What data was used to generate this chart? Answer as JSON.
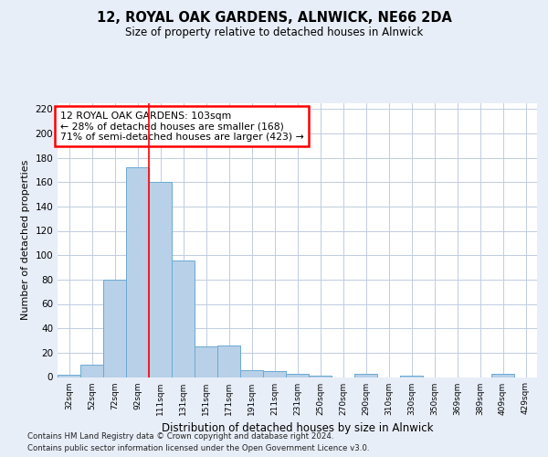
{
  "title": "12, ROYAL OAK GARDENS, ALNWICK, NE66 2DA",
  "subtitle": "Size of property relative to detached houses in Alnwick",
  "xlabel": "Distribution of detached houses by size in Alnwick",
  "ylabel": "Number of detached properties",
  "categories": [
    "32sqm",
    "52sqm",
    "72sqm",
    "92sqm",
    "111sqm",
    "131sqm",
    "151sqm",
    "171sqm",
    "191sqm",
    "211sqm",
    "231sqm",
    "250sqm",
    "270sqm",
    "290sqm",
    "310sqm",
    "330sqm",
    "350sqm",
    "369sqm",
    "389sqm",
    "409sqm",
    "429sqm"
  ],
  "values": [
    2,
    10,
    80,
    172,
    160,
    96,
    25,
    26,
    6,
    5,
    3,
    1,
    0,
    3,
    0,
    1,
    0,
    0,
    0,
    3,
    0
  ],
  "bar_color": "#b8d0e8",
  "bar_edge_color": "#6aaad4",
  "annotation_text": "12 ROYAL OAK GARDENS: 103sqm\n← 28% of detached houses are smaller (168)\n71% of semi-detached houses are larger (423) →",
  "ylim": [
    0,
    225
  ],
  "yticks": [
    0,
    20,
    40,
    60,
    80,
    100,
    120,
    140,
    160,
    180,
    200,
    220
  ],
  "footer_line1": "Contains HM Land Registry data © Crown copyright and database right 2024.",
  "footer_line2": "Contains public sector information licensed under the Open Government Licence v3.0.",
  "background_color": "#e8eef8",
  "plot_bg_color": "#ffffff",
  "grid_color": "#c0cce0",
  "red_line_x": 3.5
}
